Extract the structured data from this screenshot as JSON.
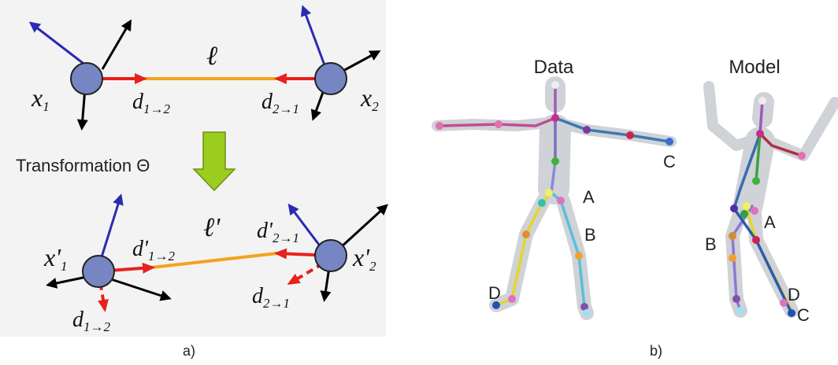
{
  "panel_a": {
    "top": {
      "node_1": {
        "base": "x",
        "sub": "1"
      },
      "node_2": {
        "base": "x",
        "sub": "2"
      },
      "link": "ℓ",
      "d_12": {
        "base": "d",
        "sub": "1→2"
      },
      "d_21": {
        "base": "d",
        "sub": "2→1"
      }
    },
    "transformation": "Transformation Θ",
    "bottom": {
      "node_1": {
        "base": "x'",
        "sub": "1"
      },
      "node_2": {
        "base": "x'",
        "sub": "2"
      },
      "link": "ℓ'",
      "d_12": {
        "base": "d'",
        "sub": "1→2"
      },
      "d_21": {
        "base": "d'",
        "sub": "2→1"
      },
      "old_d_12": {
        "base": "d",
        "sub": "1→2"
      },
      "old_d_21": {
        "base": "d",
        "sub": "2→1"
      }
    },
    "caption": "a)"
  },
  "panel_b": {
    "data": {
      "title": "Data",
      "markers": [
        "A",
        "B",
        "C",
        "D"
      ]
    },
    "model": {
      "title": "Model",
      "markers": [
        "A",
        "B",
        "C",
        "D"
      ]
    },
    "caption": "b)"
  }
}
